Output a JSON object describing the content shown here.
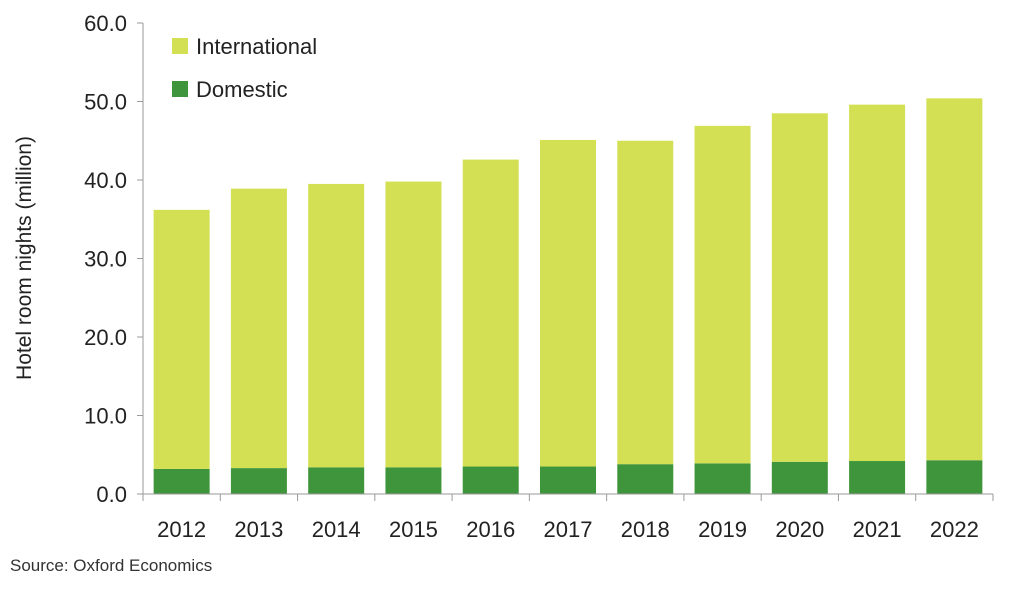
{
  "chart_data": {
    "type": "bar",
    "stacked": true,
    "categories": [
      "2012",
      "2013",
      "2014",
      "2015",
      "2016",
      "2017",
      "2018",
      "2019",
      "2020",
      "2021",
      "2022"
    ],
    "series": [
      {
        "name": "Domestic",
        "color": "#3f953b",
        "values": [
          3.2,
          3.3,
          3.4,
          3.4,
          3.5,
          3.5,
          3.8,
          3.9,
          4.1,
          4.2,
          4.3
        ]
      },
      {
        "name": "International",
        "color": "#d4e053",
        "values": [
          33.0,
          35.6,
          36.1,
          36.4,
          39.1,
          41.6,
          41.2,
          43.0,
          44.4,
          45.4,
          46.1
        ]
      }
    ],
    "legend_order": [
      "International",
      "Domestic"
    ],
    "legend_position": "top-left",
    "ylabel": "Hotel room nights (million)",
    "xlabel": "",
    "ylim": [
      0,
      60
    ],
    "yticks": [
      "0.0",
      "10.0",
      "20.0",
      "30.0",
      "40.0",
      "50.0",
      "60.0"
    ],
    "grid": false
  },
  "footer": {
    "source": "Source:  Oxford Economics"
  }
}
